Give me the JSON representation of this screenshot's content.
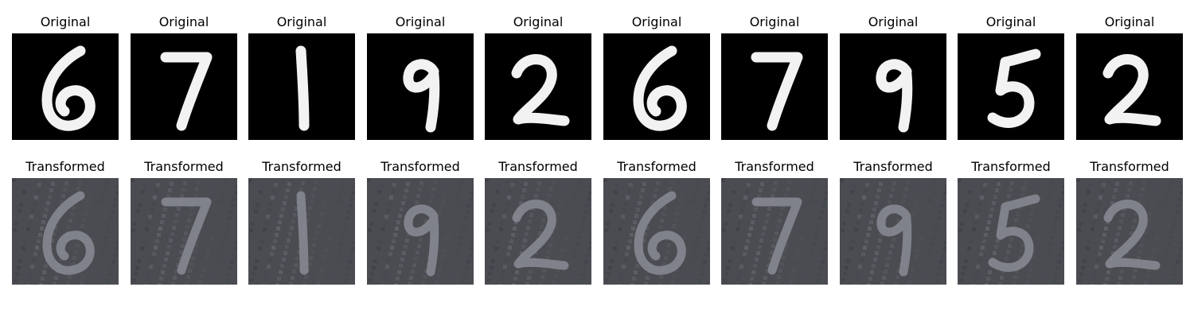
{
  "figure": {
    "rows": [
      {
        "row": "original",
        "panels": [
          {
            "title": "Original",
            "digit": "6"
          },
          {
            "title": "Original",
            "digit": "7"
          },
          {
            "title": "Original",
            "digit": "1"
          },
          {
            "title": "Original",
            "digit": "9"
          },
          {
            "title": "Original",
            "digit": "2"
          },
          {
            "title": "Original",
            "digit": "6"
          },
          {
            "title": "Original",
            "digit": "7"
          },
          {
            "title": "Original",
            "digit": "9"
          },
          {
            "title": "Original",
            "digit": "5"
          },
          {
            "title": "Original",
            "digit": "2"
          }
        ]
      },
      {
        "row": "transformed",
        "panels": [
          {
            "title": "Transformed",
            "digit": "6"
          },
          {
            "title": "Transformed",
            "digit": "7"
          },
          {
            "title": "Transformed",
            "digit": "1"
          },
          {
            "title": "Transformed",
            "digit": "9"
          },
          {
            "title": "Transformed",
            "digit": "2"
          },
          {
            "title": "Transformed",
            "digit": "6"
          },
          {
            "title": "Transformed",
            "digit": "7"
          },
          {
            "title": "Transformed",
            "digit": "9"
          },
          {
            "title": "Transformed",
            "digit": "5"
          },
          {
            "title": "Transformed",
            "digit": "2"
          }
        ]
      }
    ],
    "colors": {
      "original_background": "#000000",
      "original_stroke": "#f2f2f2",
      "transformed_background": "#4a4c52",
      "transformed_stroke": "#8a8c95"
    }
  }
}
